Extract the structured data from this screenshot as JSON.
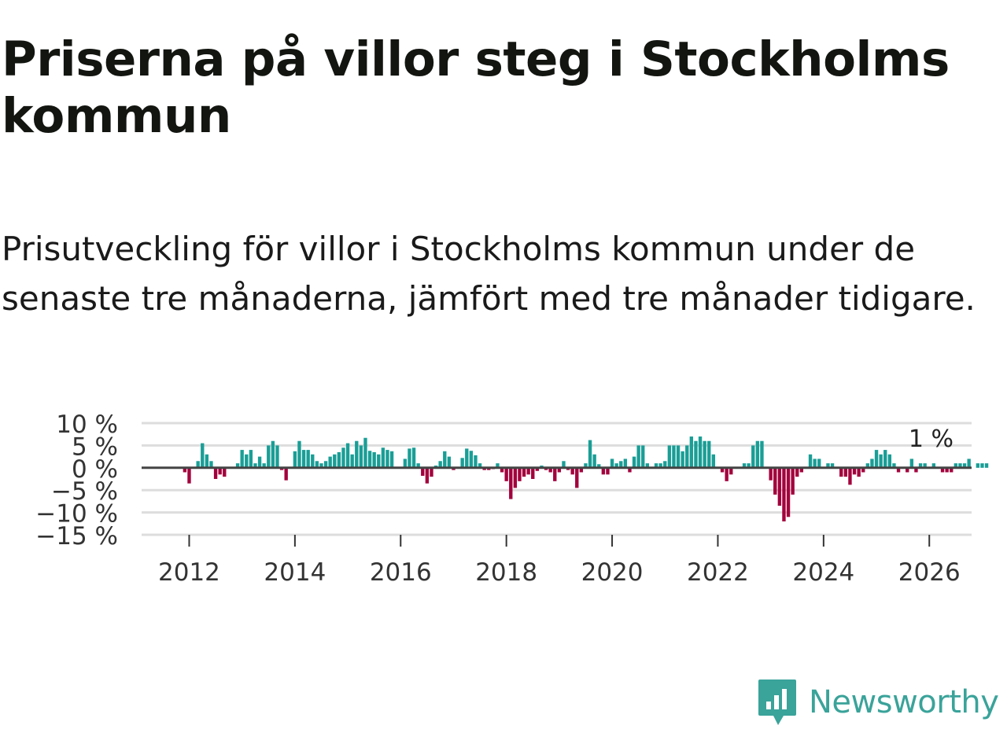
{
  "title": "Priserna på villor steg i Stockholms kommun",
  "subtitle": "Prisutveckling för villor i Stockholms kommun under de senaste tre månaderna, jämfört med tre månader tidigare.",
  "brand": {
    "name": "Newsworthy",
    "color": "#3aa39a",
    "icon": "bar-chart-speech-bubble-icon"
  },
  "chart_data": {
    "type": "bar",
    "title": "",
    "xlabel": "",
    "ylabel": "",
    "ylim": [
      -15,
      10
    ],
    "xlim": [
      2011.1,
      2026.8
    ],
    "grid": true,
    "positive_color": "#1a9e96",
    "negative_color": "#a3003c",
    "y_ticks": [
      10,
      5,
      0,
      -5,
      -10,
      -15
    ],
    "y_tick_labels": [
      "10 %",
      "5 %",
      "0 %",
      "−5 %",
      "−10 %",
      "−15 %"
    ],
    "x_ticks": [
      2012,
      2014,
      2016,
      2018,
      2020,
      2022,
      2024,
      2026
    ],
    "x_tick_labels": [
      "2012",
      "2014",
      "2016",
      "2018",
      "2020",
      "2022",
      "2024",
      "2026"
    ],
    "last_value_label": "1 %",
    "start": "2011-12",
    "frequency": "monthly",
    "values": [
      -1,
      -3.5,
      0,
      1.5,
      5.5,
      3,
      1.5,
      -2.5,
      -1.5,
      -2,
      0,
      0,
      1,
      4,
      3,
      4,
      1,
      2.5,
      1,
      5,
      6,
      5,
      -0.5,
      -2.8,
      0,
      3.7,
      6,
      4,
      4,
      3,
      1.5,
      1,
      1.5,
      2.5,
      3,
      3.5,
      4.5,
      5.5,
      3,
      6,
      5,
      6.7,
      3.8,
      3.5,
      3,
      4.5,
      4,
      3.7,
      0,
      0,
      2,
      4.3,
      4.5,
      1,
      -1.8,
      -3.5,
      -2,
      0.5,
      1.5,
      3.7,
      2.5,
      -0.5,
      0,
      2.2,
      4.3,
      3.8,
      2.8,
      1,
      -0.5,
      -0.5,
      -0.3,
      1,
      -1,
      -3,
      -7,
      -4.5,
      -3,
      -2,
      -1.5,
      -2.5,
      -0.7,
      0.5,
      -0.5,
      -1,
      -3,
      -1,
      1.5,
      -0.5,
      -1.5,
      -4.5,
      -1,
      1,
      6.2,
      3,
      0.8,
      -1.5,
      -1.5,
      2,
      1,
      1.5,
      2,
      -1,
      2.5,
      5,
      5,
      1,
      0,
      1,
      1,
      1.5,
      5,
      5,
      5,
      3.7,
      5,
      7,
      6,
      7,
      6,
      6,
      3,
      0,
      -1,
      -3,
      -1.5,
      0,
      0,
      1,
      1,
      5,
      6,
      6,
      0,
      -2.8,
      -6,
      -8.5,
      -12,
      -11,
      -6,
      -2,
      -1,
      0,
      3,
      2,
      2,
      0,
      1,
      1,
      0,
      -2,
      -2,
      -3.8,
      -1.5,
      -2,
      -1,
      1,
      2,
      4,
      3,
      4,
      3,
      1,
      -1,
      0,
      -1,
      2,
      -1,
      1,
      1,
      0,
      1,
      0,
      -1,
      -1,
      -1,
      1,
      1,
      1,
      2,
      0,
      1,
      1,
      1
    ]
  }
}
